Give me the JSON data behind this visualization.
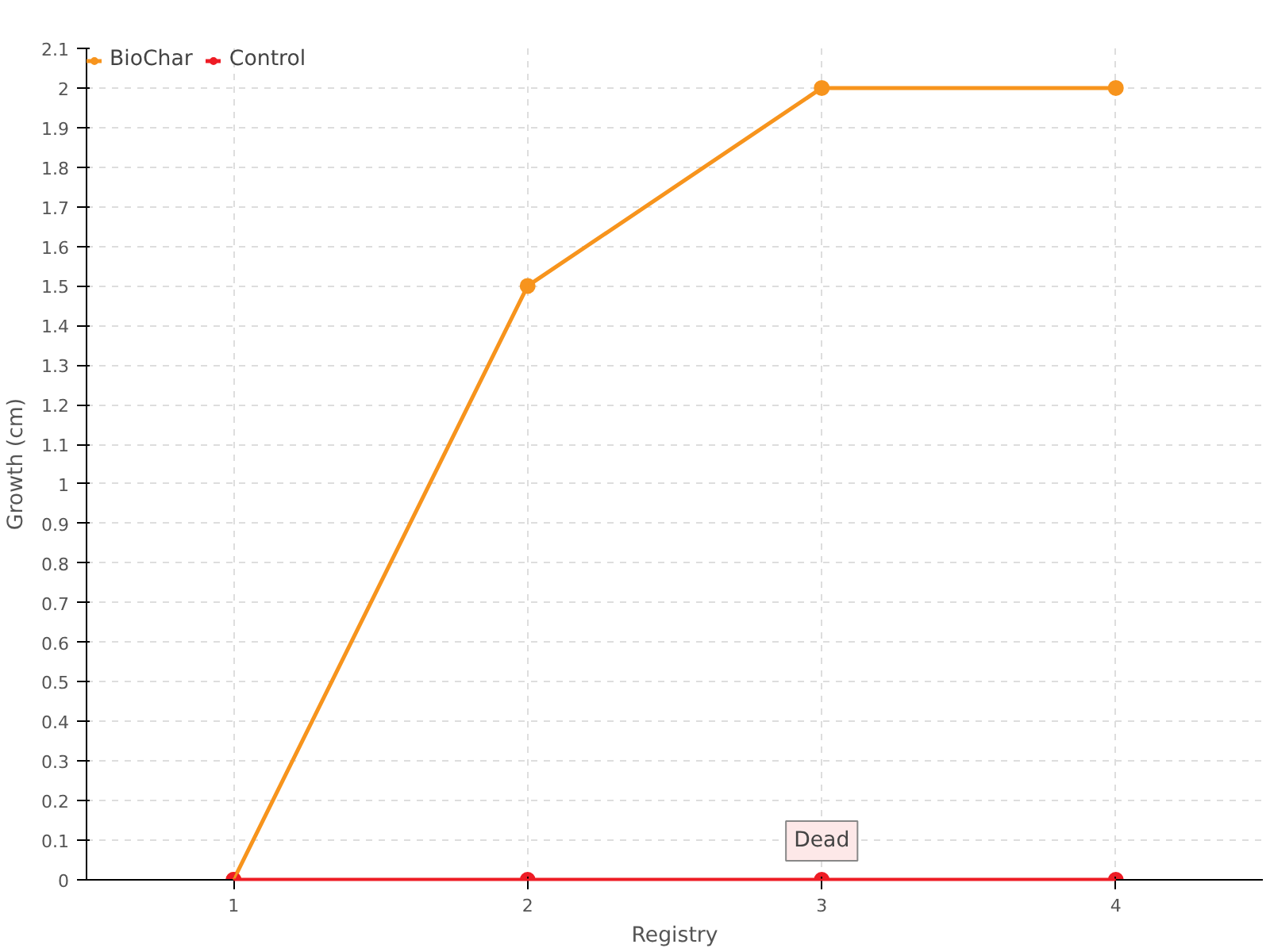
{
  "chart_data": {
    "type": "line",
    "xlabel": "Registry",
    "ylabel": "Growth (cm)",
    "categories": [
      "1",
      "2",
      "3",
      "4"
    ],
    "series": [
      {
        "name": "BioChar",
        "color": "#f7941d",
        "values": [
          0,
          1.5,
          2,
          2
        ]
      },
      {
        "name": "Control",
        "color": "#ee1c25",
        "values": [
          0,
          0,
          0,
          0
        ]
      }
    ],
    "ylim": [
      0,
      2.1
    ],
    "yticks": [
      0,
      0.1,
      0.2,
      0.3,
      0.4,
      0.5,
      0.6,
      0.7,
      0.8,
      0.9,
      1,
      1.1,
      1.2,
      1.3,
      1.4,
      1.5,
      1.6,
      1.7,
      1.8,
      1.9,
      2,
      2.1
    ],
    "annotations": [
      {
        "text": "Dead",
        "x": "3",
        "y": 0
      }
    ],
    "grid": true,
    "legend": "top left",
    "marker": "circle",
    "line_style": "solid"
  }
}
